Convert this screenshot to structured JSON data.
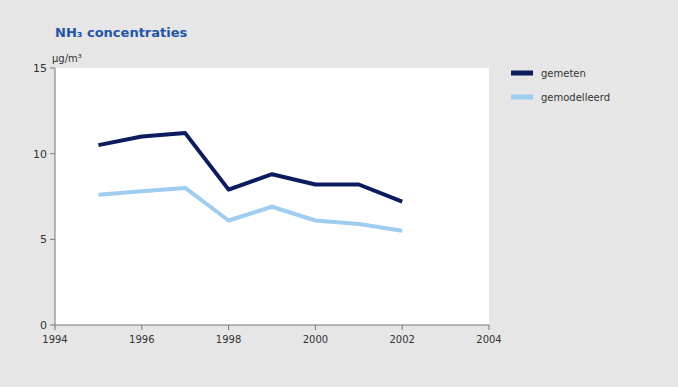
{
  "chart_data": {
    "type": "line",
    "title": "NH₃ concentraties",
    "y_label": "µg/m³",
    "x": [
      1995,
      1996,
      1997,
      1998,
      1999,
      2000,
      2001,
      2002
    ],
    "series": [
      {
        "name": "gemeten",
        "color": "#0b1c5e",
        "values": [
          10.5,
          11.0,
          11.2,
          7.9,
          8.8,
          8.2,
          8.2,
          7.2
        ]
      },
      {
        "name": "gemodelleerd",
        "color": "#9fcdf0",
        "values": [
          7.6,
          7.8,
          8.0,
          6.1,
          6.9,
          6.1,
          5.9,
          5.5
        ]
      }
    ],
    "xlim": [
      1994,
      2004
    ],
    "ylim": [
      0,
      15
    ],
    "xticks": [
      1994,
      1996,
      1998,
      2000,
      2002,
      2004
    ],
    "yticks": [
      0,
      5,
      10,
      15
    ],
    "grid": false,
    "legend": "right"
  }
}
